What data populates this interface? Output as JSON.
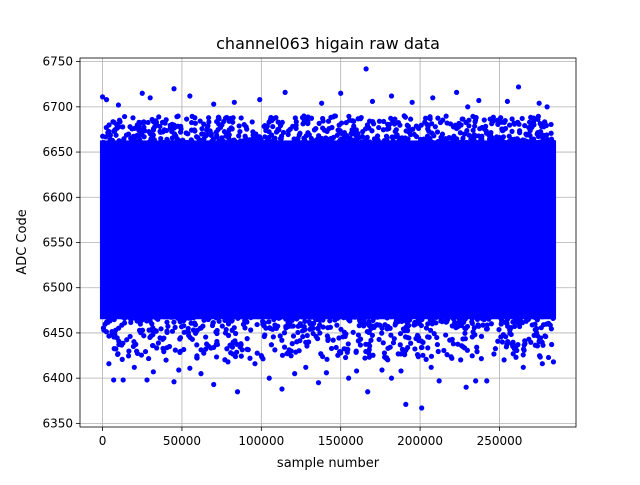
{
  "chart_data": {
    "type": "scatter",
    "title": "channel063 higain raw data",
    "xlabel": "sample number",
    "ylabel": "ADC Code",
    "xlim": [
      -14200,
      298200
    ],
    "ylim": [
      6346,
      6754
    ],
    "xticks": [
      0,
      50000,
      100000,
      150000,
      200000,
      250000
    ],
    "yticks": [
      6350,
      6400,
      6450,
      6500,
      6550,
      6600,
      6650,
      6700,
      6750
    ],
    "grid": true,
    "legend": "none",
    "color": "#0000ff",
    "series": [
      {
        "x_range": [
          0,
          284000
        ],
        "band": [
          6468,
          6660
        ],
        "envelope": [
          6420,
          6690
        ],
        "outliers": [
          [
            166000,
            6742
          ],
          [
            262000,
            6722
          ],
          [
            45000,
            6720
          ],
          [
            25000,
            6715
          ],
          [
            150000,
            6715
          ],
          [
            115000,
            6716
          ],
          [
            223000,
            6716
          ],
          [
            0,
            6711
          ],
          [
            2500,
            6708
          ],
          [
            55000,
            6712
          ],
          [
            99000,
            6708
          ],
          [
            182000,
            6712
          ],
          [
            208000,
            6710
          ],
          [
            10000,
            6702
          ],
          [
            138000,
            6704
          ],
          [
            255000,
            6706
          ],
          [
            275000,
            6704
          ],
          [
            83000,
            6705
          ],
          [
            195000,
            6705
          ],
          [
            237000,
            6707
          ],
          [
            30000,
            6710
          ],
          [
            70000,
            6703
          ],
          [
            170000,
            6706
          ],
          [
            230000,
            6700
          ],
          [
            280000,
            6700
          ],
          [
            4000,
            6416
          ],
          [
            7000,
            6398
          ],
          [
            13000,
            6398
          ],
          [
            20000,
            6412
          ],
          [
            28000,
            6398
          ],
          [
            32000,
            6407
          ],
          [
            45000,
            6396
          ],
          [
            48000,
            6409
          ],
          [
            55000,
            6411
          ],
          [
            62000,
            6405
          ],
          [
            70000,
            6393
          ],
          [
            79000,
            6418
          ],
          [
            85000,
            6385
          ],
          [
            96000,
            6416
          ],
          [
            105000,
            6400
          ],
          [
            113000,
            6388
          ],
          [
            121000,
            6405
          ],
          [
            128000,
            6412
          ],
          [
            136000,
            6395
          ],
          [
            141000,
            6406
          ],
          [
            155000,
            6400
          ],
          [
            160000,
            6408
          ],
          [
            167000,
            6385
          ],
          [
            176000,
            6409
          ],
          [
            182000,
            6400
          ],
          [
            188000,
            6408
          ],
          [
            191000,
            6371
          ],
          [
            201000,
            6367
          ],
          [
            207000,
            6412
          ],
          [
            212000,
            6397
          ],
          [
            229000,
            6390
          ],
          [
            235000,
            6397
          ],
          [
            242000,
            6397
          ],
          [
            265000,
            6412
          ],
          [
            277000,
            6416
          ],
          [
            284000,
            6418
          ],
          [
            40000,
            6420
          ],
          [
            150000,
            6428
          ],
          [
            220000,
            6422
          ],
          [
            100000,
            6425
          ]
        ]
      }
    ]
  }
}
